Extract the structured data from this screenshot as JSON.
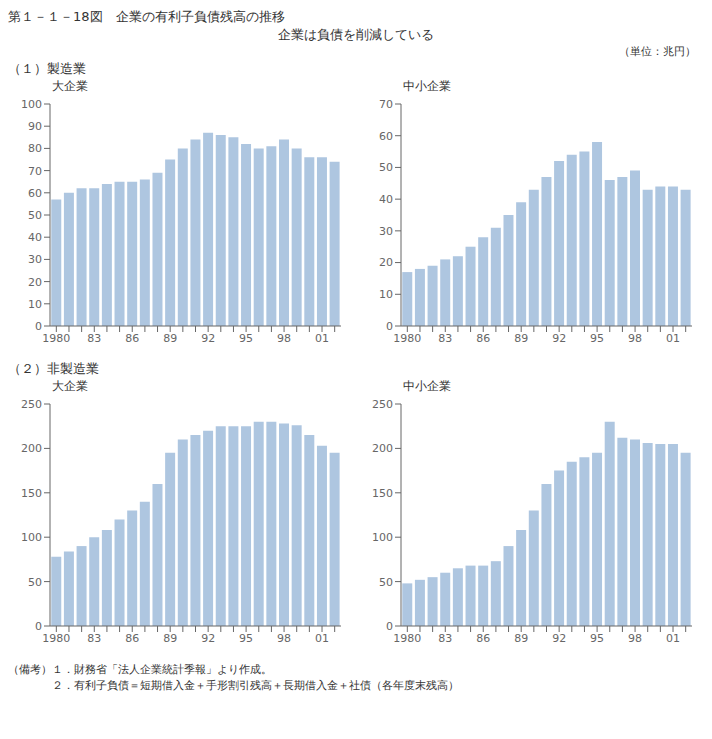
{
  "chart_data": [
    {
      "type": "bar",
      "title": "大企業",
      "annotations": [
        "第１－１－18図　企業の有利子負債残高の推移",
        "企業は負債を削減している",
        "（単位：兆円）",
        "（１）製造業"
      ],
      "categories": [
        "1980",
        null,
        null,
        "83",
        null,
        null,
        "86",
        null,
        null,
        "89",
        null,
        null,
        "92",
        null,
        null,
        "95",
        null,
        null,
        "98",
        null,
        null,
        "01",
        null
      ],
      "values": [
        57,
        60,
        62,
        62,
        64,
        65,
        65,
        66,
        69,
        75,
        80,
        84,
        87,
        86,
        85,
        82,
        80,
        81,
        84,
        80,
        76,
        76,
        74
      ],
      "color": "#aec6e0",
      "ylim": [
        0,
        100
      ],
      "yticks": [
        0,
        10,
        20,
        30,
        40,
        50,
        60,
        70,
        80,
        90,
        100
      ],
      "grid": false
    },
    {
      "type": "bar",
      "title": "中小企業",
      "categories": [
        "1980",
        null,
        null,
        "83",
        null,
        null,
        "86",
        null,
        null,
        "89",
        null,
        null,
        "92",
        null,
        null,
        "95",
        null,
        null,
        "98",
        null,
        null,
        "01",
        null
      ],
      "values": [
        17,
        18,
        19,
        21,
        22,
        25,
        28,
        31,
        35,
        39,
        43,
        47,
        52,
        54,
        55,
        58,
        46,
        47,
        49,
        43,
        44,
        44,
        43
      ],
      "color": "#aec6e0",
      "ylim": [
        0,
        70
      ],
      "yticks": [
        0,
        10,
        20,
        30,
        40,
        50,
        60,
        70
      ],
      "grid": false
    },
    {
      "type": "bar",
      "title": "大企業",
      "annotations": [
        "（２）非製造業",
        "（備考）１．財務省「法人企業統計季報」より作成。",
        "　　　　２．有利子負債＝短期借入金＋手形割引残高＋長期借入金＋社債（各年度末残高）"
      ],
      "categories": [
        "1980",
        null,
        null,
        "83",
        null,
        null,
        "86",
        null,
        null,
        "89",
        null,
        null,
        "92",
        null,
        null,
        "95",
        null,
        null,
        "98",
        null,
        null,
        "01",
        null
      ],
      "values": [
        78,
        84,
        90,
        100,
        108,
        120,
        130,
        140,
        160,
        195,
        210,
        215,
        220,
        225,
        225,
        225,
        230,
        230,
        228,
        226,
        215,
        203,
        195
      ],
      "color": "#aec6e0",
      "ylim": [
        0,
        250
      ],
      "yticks": [
        0,
        50,
        100,
        150,
        200,
        250
      ],
      "grid": false
    },
    {
      "type": "bar",
      "title": "中小企業",
      "categories": [
        "1980",
        null,
        null,
        "83",
        null,
        null,
        "86",
        null,
        null,
        "89",
        null,
        null,
        "92",
        null,
        null,
        "95",
        null,
        null,
        "98",
        null,
        null,
        "01",
        null
      ],
      "values": [
        48,
        52,
        55,
        60,
        65,
        68,
        68,
        73,
        90,
        108,
        130,
        160,
        175,
        185,
        190,
        195,
        230,
        212,
        210,
        206,
        205,
        205,
        195
      ],
      "color": "#aec6e0",
      "ylim": [
        0,
        250
      ],
      "yticks": [
        0,
        50,
        100,
        150,
        200,
        250
      ],
      "grid": false
    }
  ]
}
